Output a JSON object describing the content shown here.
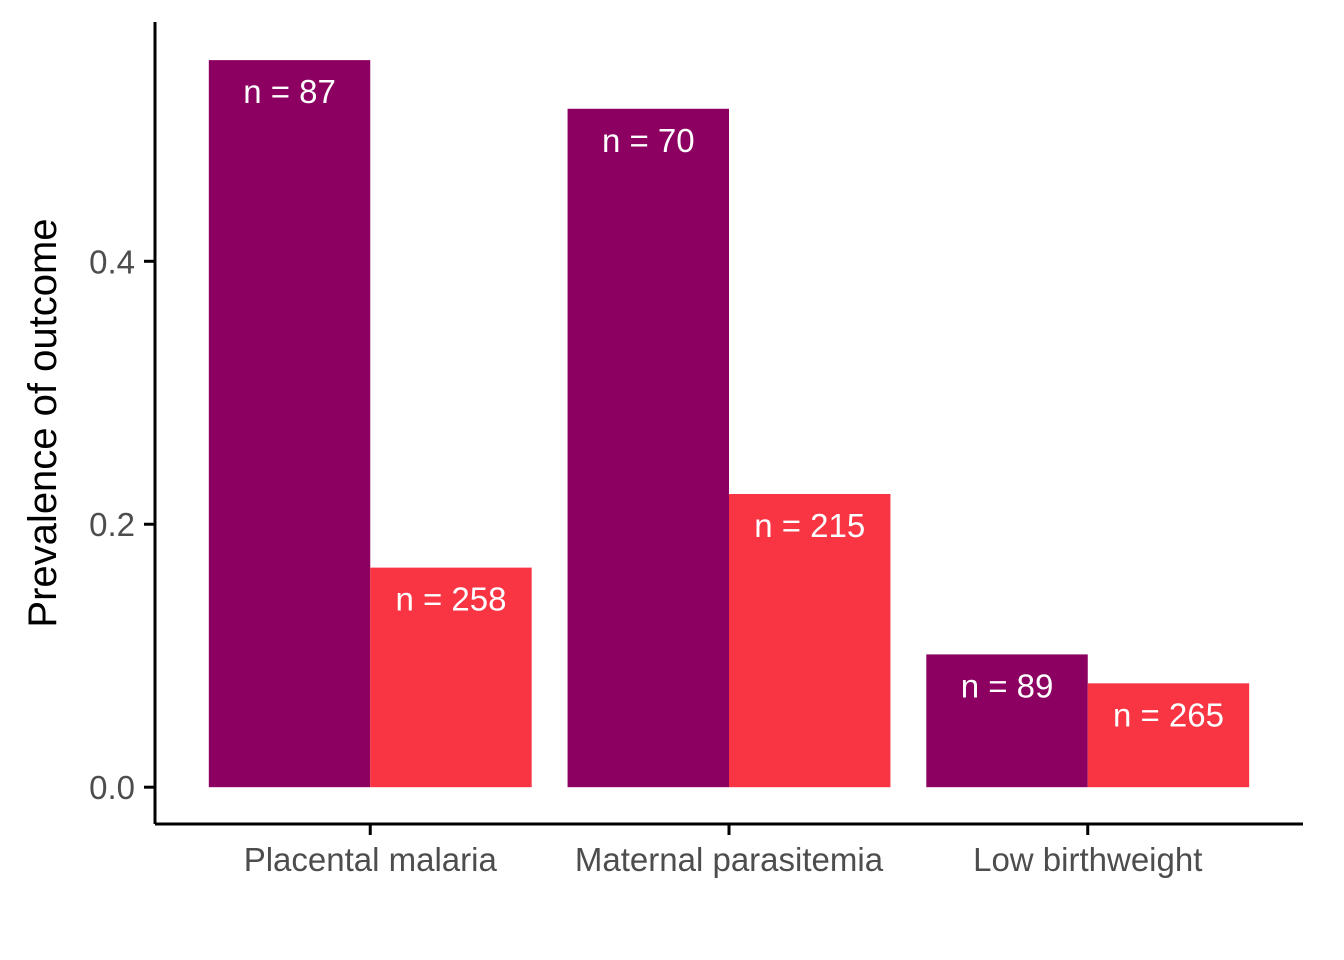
{
  "chart_data": {
    "type": "bar",
    "categories": [
      "Placental malaria",
      "Maternal parasitemia",
      "Low birthweight"
    ],
    "series": [
      {
        "values": [
          0.553,
          0.516,
          0.101
        ],
        "labels": [
          "n = 87",
          "n = 70",
          "n = 89"
        ],
        "color": "#8b0060"
      },
      {
        "values": [
          0.167,
          0.223,
          0.079
        ],
        "labels": [
          "n = 258",
          "n = 215",
          "n = 265"
        ],
        "color": "#f93443"
      }
    ],
    "xlabel": "",
    "ylabel": "Prevalence of outcome",
    "ylim": [
      -0.028,
      0.582
    ],
    "yticks": [
      0.0,
      0.2,
      0.4
    ],
    "ytick_labels": [
      "0.0",
      "0.2",
      "0.4"
    ],
    "grid": false,
    "legend": "none"
  }
}
